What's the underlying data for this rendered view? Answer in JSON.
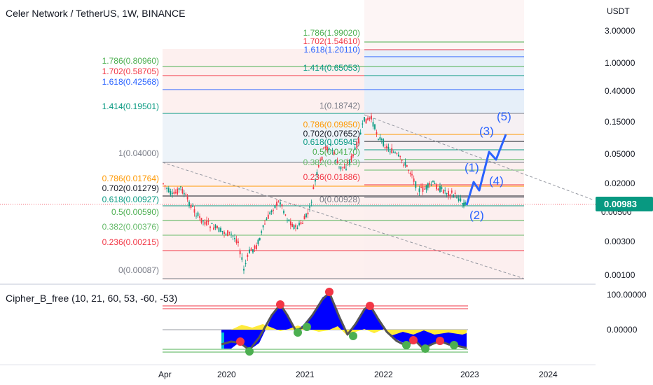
{
  "header": {
    "title": "Celer Network / TetherUS, 1W, BINANCE"
  },
  "indicator": {
    "title": "Cipher_B_free (10, 21, 60, 53, -60, -53)"
  },
  "price_axis": {
    "unit": "USDT",
    "ticks": [
      "3.00000",
      "1.00000",
      "0.40000",
      "0.15000",
      "0.05000",
      "0.02000",
      "0.00300",
      "0.00100"
    ],
    "partial_tick": "0.00500",
    "current_price": "0.00983",
    "current_price_color": "#089981"
  },
  "indicator_axis": {
    "ticks": [
      "100.00000",
      "0.00000"
    ]
  },
  "time_axis": {
    "ticks": [
      "Apr",
      "2020",
      "2021",
      "2022",
      "2023",
      "2024"
    ]
  },
  "fib_left": [
    {
      "label": "1.786(0.80960)",
      "color": "#4caf50"
    },
    {
      "label": "1.702(0.58705)",
      "color": "#f23645"
    },
    {
      "label": "1.618(0.42568)",
      "color": "#2962ff"
    },
    {
      "label": "1.414(0.19501)",
      "color": "#089981"
    },
    {
      "label": "1(0.04000)",
      "color": "#787b86"
    },
    {
      "label": "0.786(0.01764)",
      "color": "#ff9800"
    },
    {
      "label": "0.702(0.01279)",
      "color": "#131722"
    },
    {
      "label": "0.618(0.00927)",
      "color": "#089981"
    },
    {
      "label": "0.5(0.00590)",
      "color": "#4caf50"
    },
    {
      "label": "0.382(0.00376)",
      "color": "#66bb6a"
    },
    {
      "label": "0.236(0.00215)",
      "color": "#f23645"
    },
    {
      "label": "0(0.00087)",
      "color": "#787b86"
    }
  ],
  "fib_right": [
    {
      "label": "1.786(1.99020)",
      "color": "#4caf50"
    },
    {
      "label": "1.702(1.54610)",
      "color": "#f23645"
    },
    {
      "label": "1.618(1.20110)",
      "color": "#2962ff"
    },
    {
      "label": "1.414(0.65053)",
      "color": "#089981"
    },
    {
      "label": "1(0.18742)",
      "color": "#787b86"
    },
    {
      "label": "0.786(0.09850)",
      "color": "#ff9800"
    },
    {
      "label": "0.702(0.07652)",
      "color": "#131722"
    },
    {
      "label": "0.618(0.05945)",
      "color": "#089981"
    },
    {
      "label": "0.5(0.04170)",
      "color": "#4caf50"
    },
    {
      "label": "0.382(0.02923)",
      "color": "#66bb6a"
    },
    {
      "label": "0.236(0.01886)",
      "color": "#f23645"
    },
    {
      "label": "0(0.00928)",
      "color": "#787b86"
    }
  ],
  "waves": {
    "labels": [
      "(1)",
      "(2)",
      "(3)",
      "(4)",
      "(5)"
    ],
    "color": "#2962ff"
  },
  "colors": {
    "up": "#089981",
    "down": "#f23645",
    "wave_fill": "#0000ff",
    "wave_light": "#00bcd4",
    "vwap": "#ffeb3b",
    "sell_dot": "#f23645",
    "buy_dot": "#4caf50"
  }
}
